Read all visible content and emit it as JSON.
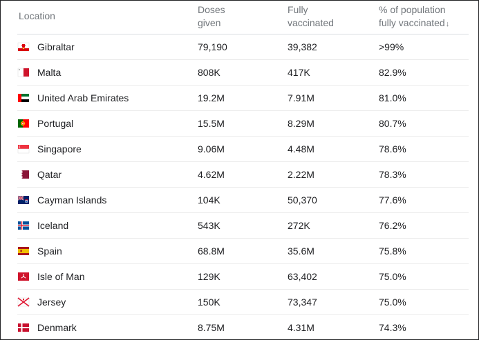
{
  "columns": {
    "location": "Location",
    "doses_line1": "Doses",
    "doses_line2": "given",
    "fully_line1": "Fully",
    "fully_line2": "vaccinated",
    "pct_line1": "% of population",
    "pct_line2": "fully vaccinated",
    "sort_arrow": "↓"
  },
  "rows": [
    {
      "location": "Gibraltar",
      "flag": "gibraltar-flag-icon",
      "doses": "79,190",
      "fully": "39,382",
      "pct": ">99%"
    },
    {
      "location": "Malta",
      "flag": "malta-flag-icon",
      "doses": "808K",
      "fully": "417K",
      "pct": "82.9%"
    },
    {
      "location": "United Arab Emirates",
      "flag": "uae-flag-icon",
      "doses": "19.2M",
      "fully": "7.91M",
      "pct": "81.0%"
    },
    {
      "location": "Portugal",
      "flag": "portugal-flag-icon",
      "doses": "15.5M",
      "fully": "8.29M",
      "pct": "80.7%"
    },
    {
      "location": "Singapore",
      "flag": "singapore-flag-icon",
      "doses": "9.06M",
      "fully": "4.48M",
      "pct": "78.6%"
    },
    {
      "location": "Qatar",
      "flag": "qatar-flag-icon",
      "doses": "4.62M",
      "fully": "2.22M",
      "pct": "78.3%"
    },
    {
      "location": "Cayman Islands",
      "flag": "cayman-islands-flag-icon",
      "doses": "104K",
      "fully": "50,370",
      "pct": "77.6%"
    },
    {
      "location": "Iceland",
      "flag": "iceland-flag-icon",
      "doses": "543K",
      "fully": "272K",
      "pct": "76.2%"
    },
    {
      "location": "Spain",
      "flag": "spain-flag-icon",
      "doses": "68.8M",
      "fully": "35.6M",
      "pct": "75.8%"
    },
    {
      "location": "Isle of Man",
      "flag": "isle-of-man-flag-icon",
      "doses": "129K",
      "fully": "63,402",
      "pct": "75.0%"
    },
    {
      "location": "Jersey",
      "flag": "jersey-flag-icon",
      "doses": "150K",
      "fully": "73,347",
      "pct": "75.0%"
    },
    {
      "location": "Denmark",
      "flag": "denmark-flag-icon",
      "doses": "8.75M",
      "fully": "4.31M",
      "pct": "74.3%"
    }
  ]
}
